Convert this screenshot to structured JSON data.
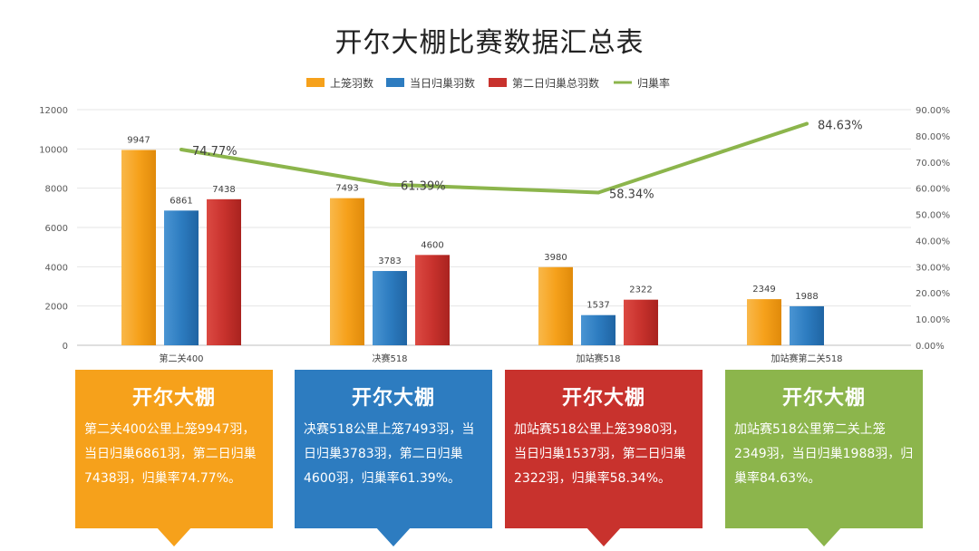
{
  "chart_data": {
    "type": "bar",
    "title": "开尔大棚比赛数据汇总表",
    "categories": [
      "第二关400",
      "决赛518",
      "加站赛518",
      "加站赛第二关518"
    ],
    "series": [
      {
        "name": "上笼羽数",
        "type": "bar",
        "axis": "left",
        "color": "#f6a11b",
        "values": [
          9947,
          7493,
          3980,
          2349
        ]
      },
      {
        "name": "当日归巢羽数",
        "type": "bar",
        "axis": "left",
        "color": "#2d7cc0",
        "values": [
          6861,
          3783,
          1537,
          1988
        ]
      },
      {
        "name": "第二日归巢总羽数",
        "type": "bar",
        "axis": "left",
        "color": "#c8322d",
        "values": [
          7438,
          4600,
          2322,
          null
        ]
      },
      {
        "name": "归巢率",
        "type": "line",
        "axis": "right",
        "color": "#8cb54c",
        "values": [
          74.77,
          61.39,
          58.34,
          84.63
        ]
      }
    ],
    "bar_value_labels": [
      [
        "9947",
        "6861",
        "7438"
      ],
      [
        "7493",
        "3783",
        "4600"
      ],
      [
        "3980",
        "1537",
        "2322"
      ],
      [
        "2349",
        "1988",
        null
      ]
    ],
    "line_labels": [
      "74.77%",
      "61.39%",
      "58.34%",
      "84.63%"
    ],
    "y_left": {
      "min": 0,
      "max": 12000,
      "ticks": [
        "0",
        "2000",
        "4000",
        "6000",
        "8000",
        "10000",
        "12000"
      ]
    },
    "y_right": {
      "min": 0,
      "max": 90,
      "ticks": [
        "0.00%",
        "10.00%",
        "20.00%",
        "30.00%",
        "40.00%",
        "50.00%",
        "60.00%",
        "70.00%",
        "80.00%",
        "90.00%"
      ]
    },
    "legend_position": "top",
    "grid": true
  },
  "cards": [
    {
      "heading": "开尔大棚",
      "text": "第二关400公里上笼9947羽，当日归巢6861羽，第二日归巢7438羽，归巢率74.77%。"
    },
    {
      "heading": "开尔大棚",
      "text": "决赛518公里上笼7493羽，当日归巢3783羽，第二日归巢4600羽，归巢率61.39%。"
    },
    {
      "heading": "开尔大棚",
      "text": "加站赛518公里上笼3980羽，当日归巢1537羽，第二日归巢2322羽，归巢率58.34%。"
    },
    {
      "heading": "开尔大棚",
      "text": "加站赛518公里第二关上笼2349羽，当日归巢1988羽，归巢率84.63%。"
    }
  ]
}
